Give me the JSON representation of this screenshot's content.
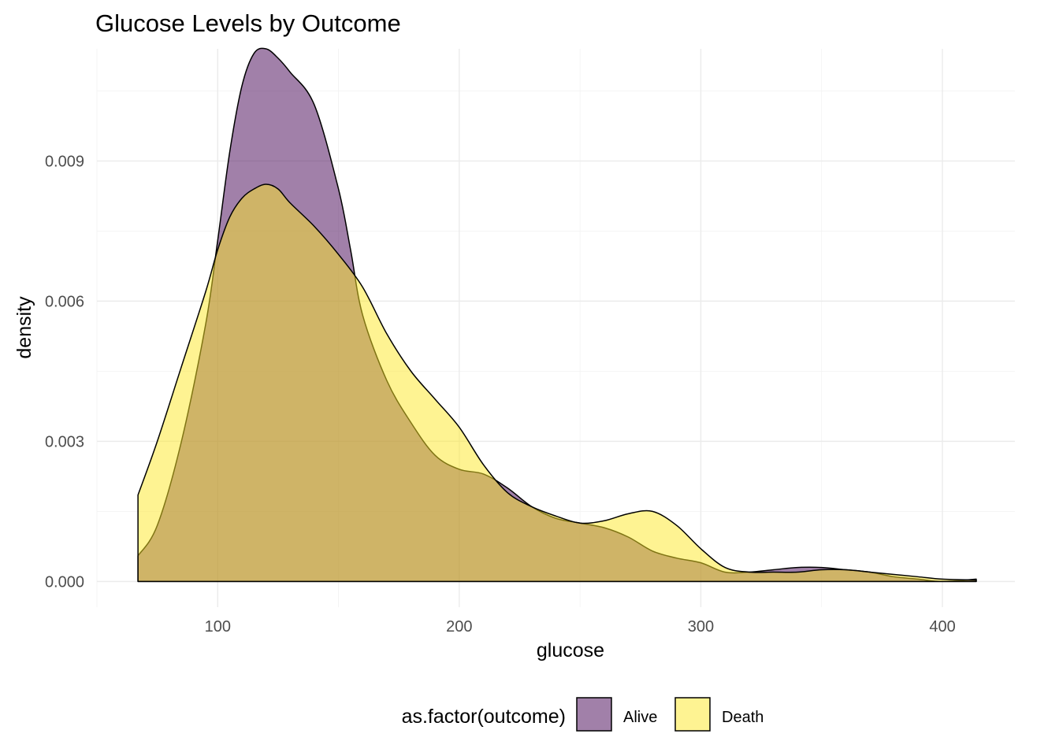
{
  "chart_data": {
    "type": "area",
    "title": "Glucose Levels by Outcome",
    "xlabel": "glucose",
    "ylabel": "density",
    "xlim": [
      50,
      430
    ],
    "ylim": [
      -0.00055,
      0.0114
    ],
    "x_ticks": [
      100,
      200,
      300,
      400
    ],
    "y_ticks": [
      0.0,
      0.003,
      0.006,
      0.009
    ],
    "y_tick_labels": [
      "0.000",
      "0.003",
      "0.006",
      "0.009"
    ],
    "grid": true,
    "legend": {
      "title": "as.factor(outcome)",
      "position": "bottom"
    },
    "series": [
      {
        "name": "Alive",
        "color": "#440154",
        "alpha": 0.5,
        "x": [
          67,
          75,
          85,
          95,
          100,
          105,
          110,
          115,
          120,
          125,
          130,
          140,
          150,
          155,
          160,
          170,
          180,
          190,
          200,
          210,
          220,
          230,
          240,
          250,
          260,
          270,
          280,
          290,
          300,
          310,
          320,
          330,
          340,
          350,
          360,
          370,
          380,
          390,
          400,
          414
        ],
        "y": [
          0.00055,
          0.0012,
          0.003,
          0.0055,
          0.0073,
          0.0092,
          0.0106,
          0.0113,
          0.0114,
          0.0112,
          0.0109,
          0.0102,
          0.0084,
          0.0071,
          0.0057,
          0.0043,
          0.0034,
          0.0027,
          0.0024,
          0.0023,
          0.002,
          0.0016,
          0.00135,
          0.00125,
          0.00115,
          0.00095,
          0.00065,
          0.0005,
          0.0004,
          0.0002,
          0.0002,
          0.00025,
          0.0003,
          0.0003,
          0.00025,
          0.0002,
          0.0001,
          5e-05,
          0.0,
          5e-05
        ]
      },
      {
        "name": "Death",
        "color": "#fde725",
        "alpha": 0.5,
        "x": [
          67,
          75,
          85,
          95,
          100,
          105,
          110,
          115,
          120,
          125,
          130,
          140,
          150,
          160,
          170,
          180,
          190,
          200,
          210,
          220,
          230,
          240,
          250,
          260,
          270,
          280,
          290,
          300,
          310,
          320,
          330,
          340,
          350,
          360,
          370,
          380,
          390,
          400,
          414
        ],
        "y": [
          0.00185,
          0.003,
          0.0046,
          0.0062,
          0.0071,
          0.0078,
          0.0082,
          0.0084,
          0.0085,
          0.0084,
          0.0081,
          0.0076,
          0.007,
          0.0063,
          0.0053,
          0.0045,
          0.0039,
          0.0033,
          0.0025,
          0.0019,
          0.0016,
          0.0014,
          0.00125,
          0.0013,
          0.00145,
          0.0015,
          0.0012,
          0.0007,
          0.0003,
          0.0002,
          0.0002,
          0.0002,
          0.00025,
          0.00025,
          0.0002,
          0.00015,
          0.0001,
          5e-05,
          3e-05
        ]
      }
    ]
  }
}
